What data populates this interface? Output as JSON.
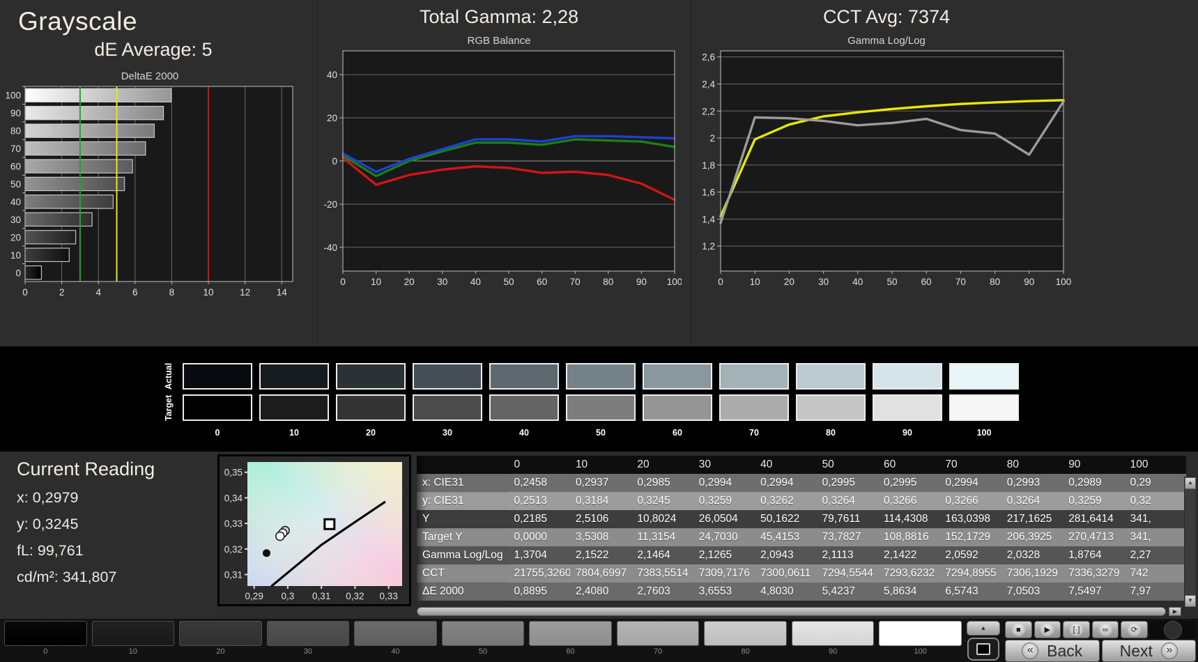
{
  "header": {
    "grayscale_title": "Grayscale",
    "de_average": "dE Average: 5",
    "total_gamma": "Total Gamma: 2,28",
    "cct_avg": "CCT Avg: 7374"
  },
  "chart_data": [
    {
      "type": "bar",
      "orientation": "horizontal",
      "title": "DeltaE 2000",
      "categories": [
        "100",
        "90",
        "80",
        "70",
        "60",
        "50",
        "40",
        "30",
        "20",
        "10",
        "0"
      ],
      "values": [
        7.97,
        7.5497,
        7.0503,
        6.5743,
        5.8634,
        5.4237,
        4.803,
        3.6553,
        2.7603,
        2.408,
        0.8895
      ],
      "xlim": [
        0,
        14.6
      ],
      "xticks": [
        {
          "v": 0,
          "label": "0"
        },
        {
          "v": 2,
          "label": "2"
        },
        {
          "v": 4,
          "label": "4"
        },
        {
          "v": 6,
          "label": "6"
        },
        {
          "v": 8,
          "label": "8"
        },
        {
          "v": 10,
          "label": "10"
        },
        {
          "v": 12,
          "label": "12"
        },
        {
          "v": 14,
          "label": "14"
        }
      ],
      "reference_lines": [
        {
          "x": 3,
          "color": "#2f9e2f"
        },
        {
          "x": 5,
          "label": "",
          "color": "#e4e42c"
        },
        {
          "x": 10,
          "color": "#b32424"
        }
      ],
      "grid": true
    },
    {
      "type": "line",
      "title": "RGB Balance",
      "x": [
        0,
        10,
        20,
        30,
        40,
        50,
        60,
        70,
        80,
        90,
        100
      ],
      "xticks": [
        {
          "v": 0,
          "label": "0"
        },
        {
          "v": 10,
          "label": "10"
        },
        {
          "v": 20,
          "label": "20"
        },
        {
          "v": 30,
          "label": "30"
        },
        {
          "v": 40,
          "label": "40"
        },
        {
          "v": 50,
          "label": "50"
        },
        {
          "v": 60,
          "label": "60"
        },
        {
          "v": 70,
          "label": "70"
        },
        {
          "v": 80,
          "label": "80"
        },
        {
          "v": 90,
          "label": "90"
        },
        {
          "v": 100,
          "label": "100"
        }
      ],
      "ylim": [
        -51,
        51
      ],
      "yticks": [
        {
          "v": 40,
          "label": "40"
        },
        {
          "v": 20,
          "label": "20"
        },
        {
          "v": 0,
          "label": "0"
        },
        {
          "v": -20,
          "label": "-20"
        },
        {
          "v": -40,
          "label": "-40"
        }
      ],
      "series": [
        {
          "name": "red",
          "color": "#d41414",
          "values": [
            1.5,
            -11,
            -6.5,
            -4,
            -2.5,
            -3.2,
            -5.5,
            -5,
            -6.5,
            -10.5,
            -18
          ]
        },
        {
          "name": "green",
          "color": "#188018",
          "values": [
            2.5,
            -7,
            0,
            4.5,
            8.5,
            8.5,
            7.5,
            10,
            9.5,
            9,
            6.5
          ]
        },
        {
          "name": "blue",
          "color": "#1f3fd4",
          "values": [
            3.5,
            -5,
            1,
            5.5,
            10,
            10,
            9,
            11.5,
            11.5,
            11,
            10.5
          ]
        }
      ],
      "grid": true,
      "legend": "none"
    },
    {
      "type": "line",
      "title": "Gamma Log/Log",
      "x": [
        0,
        10,
        20,
        30,
        40,
        50,
        60,
        70,
        80,
        90,
        100
      ],
      "xticks": [
        {
          "v": 0,
          "label": "0"
        },
        {
          "v": 10,
          "label": "10"
        },
        {
          "v": 20,
          "label": "20"
        },
        {
          "v": 30,
          "label": "30"
        },
        {
          "v": 40,
          "label": "40"
        },
        {
          "v": 50,
          "label": "50"
        },
        {
          "v": 60,
          "label": "60"
        },
        {
          "v": 70,
          "label": "70"
        },
        {
          "v": 80,
          "label": "80"
        },
        {
          "v": 90,
          "label": "90"
        },
        {
          "v": 100,
          "label": "100"
        }
      ],
      "ylim": [
        1.015,
        2.645
      ],
      "yticks": [
        {
          "v": 2.6,
          "label": "2,6"
        },
        {
          "v": 2.4,
          "label": "2,4"
        },
        {
          "v": 2.2,
          "label": "2,2"
        },
        {
          "v": 2.0,
          "label": "2"
        },
        {
          "v": 1.8,
          "label": "1,8"
        },
        {
          "v": 1.6,
          "label": "1,6"
        },
        {
          "v": 1.4,
          "label": "1,4"
        },
        {
          "v": 1.2,
          "label": "1,2"
        }
      ],
      "series": [
        {
          "name": "target-gamma",
          "color": "#e8e800",
          "values": [
            1.42,
            1.99,
            2.1,
            2.16,
            2.19,
            2.215,
            2.235,
            2.252,
            2.264,
            2.273,
            2.28
          ]
        },
        {
          "name": "measured-gamma",
          "color": "#9c9c9c",
          "values": [
            1.3704,
            2.1522,
            2.1464,
            2.1265,
            2.0943,
            2.1113,
            2.1422,
            2.0592,
            2.0328,
            1.8764,
            2.27
          ]
        }
      ],
      "grid": true,
      "legend": "none"
    }
  ],
  "swatches": {
    "actual_label": "Actual",
    "target_label": "Target",
    "labels": [
      "0",
      "10",
      "20",
      "30",
      "40",
      "50",
      "60",
      "70",
      "80",
      "90",
      "100"
    ],
    "actual_colors": [
      "#070b0f",
      "#161b20",
      "#2b3236",
      "#454e54",
      "#5d696e",
      "#768289",
      "#8a979e",
      "#a3b2b6",
      "#bccbd0",
      "#d5e4e8",
      "#e8f6f9"
    ],
    "target_colors": [
      "#010101",
      "#1c1c1c",
      "#333333",
      "#4b4b4b",
      "#646464",
      "#7d7d7d",
      "#959595",
      "#acacac",
      "#c5c5c5",
      "#e1e1e1",
      "#f7f7f7"
    ]
  },
  "current_reading": {
    "title": "Current Reading",
    "lines": [
      {
        "label": "x:",
        "value": "0,2979"
      },
      {
        "label": "y:",
        "value": "0,3245"
      },
      {
        "label": "fL:",
        "value": "99,761"
      },
      {
        "label": "cd/m²:",
        "value": "341,807"
      }
    ]
  },
  "cie_chart": {
    "xticks": [
      {
        "v": 0.29,
        "label": "0,29"
      },
      {
        "v": 0.3,
        "label": "0,3"
      },
      {
        "v": 0.31,
        "label": "0,31"
      },
      {
        "v": 0.32,
        "label": "0,32"
      },
      {
        "v": 0.33,
        "label": "0,33"
      }
    ],
    "yticks": [
      {
        "v": 0.35,
        "label": "0,35"
      },
      {
        "v": 0.34,
        "label": "0,34"
      },
      {
        "v": 0.33,
        "label": "0,33"
      },
      {
        "v": 0.32,
        "label": "0,32"
      },
      {
        "v": 0.31,
        "label": "0,31"
      }
    ],
    "xrange": [
      0.288,
      0.334
    ],
    "yrange": [
      0.3055,
      0.354
    ],
    "locus": [
      [
        0.2951,
        0.3054
      ],
      [
        0.303,
        0.314
      ],
      [
        0.31,
        0.3216
      ],
      [
        0.32,
        0.3305
      ],
      [
        0.329,
        0.3385
      ]
    ],
    "target_square": [
      0.3124,
      0.3297
    ],
    "reading_circles": [
      [
        0.2992,
        0.3272
      ],
      [
        0.2985,
        0.3262
      ],
      [
        0.2977,
        0.325
      ]
    ],
    "black_dot": [
      0.2937,
      0.3184
    ]
  },
  "table": {
    "columns": [
      "0",
      "10",
      "20",
      "30",
      "40",
      "50",
      "60",
      "70",
      "80",
      "90",
      "100"
    ],
    "row_colors": [
      "#6e6e6e",
      "#9c9c9c",
      "#3d3d3d",
      "#8c8c8c",
      "#555555",
      "#8c8c8c",
      "#6a6a6a"
    ],
    "rows": [
      {
        "label": "x: CIE31",
        "values": [
          "0,2458",
          "0,2937",
          "0,2985",
          "0,2994",
          "0,2994",
          "0,2995",
          "0,2995",
          "0,2994",
          "0,2993",
          "0,2989",
          "0,29"
        ]
      },
      {
        "label": "y: CIE31",
        "values": [
          "0,2513",
          "0,3184",
          "0,3245",
          "0,3259",
          "0,3262",
          "0,3264",
          "0,3266",
          "0,3266",
          "0,3264",
          "0,3259",
          "0,32"
        ]
      },
      {
        "label": "Y",
        "values": [
          "0,2185",
          "2,5106",
          "10,8024",
          "26,0504",
          "50,1622",
          "79,7611",
          "114,4308",
          "163,0398",
          "217,1625",
          "281,6414",
          "341,"
        ]
      },
      {
        "label": "Target Y",
        "values": [
          "0,0000",
          "3,5308",
          "11,3154",
          "24,7030",
          "45,4153",
          "73,7827",
          "108,8816",
          "152,1729",
          "206,3925",
          "270,4713",
          "341,"
        ]
      },
      {
        "label": "Gamma Log/Log",
        "values": [
          "1,3704",
          "2,1522",
          "2,1464",
          "2,1265",
          "2,0943",
          "2,1113",
          "2,1422",
          "2,0592",
          "2,0328",
          "1,8764",
          "2,27"
        ]
      },
      {
        "label": "CCT",
        "values": [
          "21755,3260",
          "7804,6997",
          "7383,5514",
          "7309,7176",
          "7300,0611",
          "7294,5544",
          "7293,6232",
          "7294,8955",
          "7306,1929",
          "7336,3279",
          "742"
        ]
      },
      {
        "label": "ΔE 2000",
        "values": [
          "0,8895",
          "2,4080",
          "2,7603",
          "3,6553",
          "4,8030",
          "5,4237",
          "5,8634",
          "6,5743",
          "7,0503",
          "7,5497",
          "7,97"
        ]
      }
    ]
  },
  "bottom_bar": {
    "patch_labels": [
      "0",
      "10",
      "20",
      "30",
      "40",
      "50",
      "60",
      "70",
      "80",
      "90",
      "100"
    ],
    "selected_patch": "100",
    "pattern_up_glyph": "▲",
    "transport_buttons": [
      {
        "name": "stop-button",
        "glyph": "■"
      },
      {
        "name": "play-button",
        "glyph": "▶"
      },
      {
        "name": "range-button",
        "glyph": "[·]"
      },
      {
        "name": "continuous-button",
        "glyph": "∞"
      },
      {
        "name": "refresh-button",
        "glyph": "⟳"
      }
    ],
    "back_glyph": "«",
    "back_label": "Back",
    "next_label": "Next",
    "next_glyph": "»"
  },
  "icons": {
    "scroll_up": "▲",
    "scroll_down": "▼",
    "scroll_right": "▶"
  },
  "colors": {
    "background": "#2d2d2d",
    "plot_background": "#191919",
    "grid_line": "#6a6a6a",
    "axis_text": "#e0e0e0",
    "title_text": "#f2ede2",
    "red_line": "#d41414",
    "green_line": "#188018",
    "blue_line": "#1f3fd4",
    "yellow_line": "#e8e800",
    "gray_line": "#9c9c9c",
    "ref_green": "#2f9e2f",
    "ref_yellow": "#e4e42c",
    "ref_red": "#b32424"
  }
}
